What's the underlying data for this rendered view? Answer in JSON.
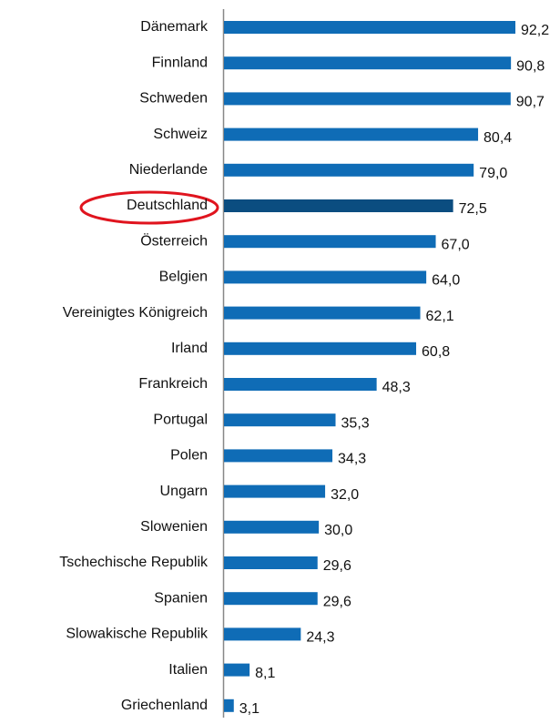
{
  "chart_data": {
    "type": "bar",
    "orientation": "horizontal",
    "categories": [
      "Dänemark",
      "Finnland",
      "Schweden",
      "Schweiz",
      "Niederlande",
      "Deutschland",
      "Österreich",
      "Belgien",
      "Vereinigtes Königreich",
      "Irland",
      "Frankreich",
      "Portugal",
      "Polen",
      "Ungarn",
      "Slowenien",
      "Tschechische Republik",
      "Spanien",
      "Slowakische Republik",
      "Italien",
      "Griechenland"
    ],
    "values": [
      92.2,
      90.8,
      90.7,
      80.4,
      79.0,
      72.5,
      67.0,
      64.0,
      62.1,
      60.8,
      48.3,
      35.3,
      34.3,
      32.0,
      30.0,
      29.6,
      29.6,
      24.3,
      8.1,
      3.1
    ],
    "value_labels": [
      "92,2",
      "90,8",
      "90,7",
      "80,4",
      "79,0",
      "72,5",
      "67,0",
      "64,0",
      "62,1",
      "60,8",
      "48,3",
      "35,3",
      "34,3",
      "32,0",
      "30,0",
      "29,6",
      "29,6",
      "24,3",
      "8,1",
      "3,1"
    ],
    "color": "#0f6cb6",
    "colors": [
      "#0f6cb6",
      "#0f6cb6",
      "#0f6cb6",
      "#0f6cb6",
      "#0f6cb6",
      "#0b4d80",
      "#0f6cb6",
      "#0f6cb6",
      "#0f6cb6",
      "#0f6cb6",
      "#0f6cb6",
      "#0f6cb6",
      "#0f6cb6",
      "#0f6cb6",
      "#0f6cb6",
      "#0f6cb6",
      "#0f6cb6",
      "#0f6cb6",
      "#0f6cb6",
      "#0f6cb6"
    ]
  }
}
